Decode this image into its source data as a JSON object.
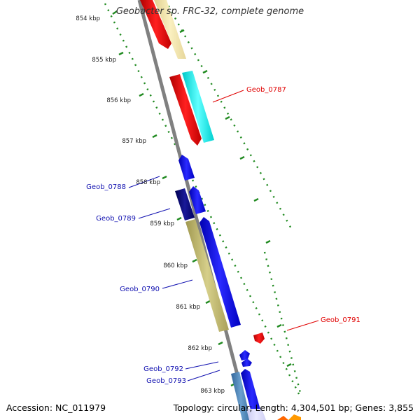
{
  "title": "Geobacter sp. FRC-32, complete genome",
  "footer": {
    "accession": "Accession: NC_011979",
    "summary": "Topology: circular; Length: 4,304,501 bp; Genes: 3,855"
  },
  "ticks": [
    "854 kbp",
    "855 kbp",
    "856 kbp",
    "857 kbp",
    "858 kbp",
    "859 kbp",
    "860 kbp",
    "861 kbp",
    "862 kbp",
    "863 kbp"
  ],
  "gene_labels": [
    {
      "text": "Geob_0787",
      "color": "#e00000"
    },
    {
      "text": "Geob_0788",
      "color": "#1010b0"
    },
    {
      "text": "Geob_0789",
      "color": "#1010b0"
    },
    {
      "text": "Geob_0790",
      "color": "#1010b0"
    },
    {
      "text": "Geob_0791",
      "color": "#e00000"
    },
    {
      "text": "Geob_0792",
      "color": "#1010b0"
    },
    {
      "text": "Geob_0793",
      "color": "#1010b0"
    }
  ],
  "colors": {
    "backbone": "#808080",
    "tick": "#228b22",
    "red": "#ff0000",
    "pale_yellow": "#f5e6a0",
    "cyan": "#00eeee",
    "blue": "#0000ee",
    "navy": "#000080",
    "khaki": "#bdb76b",
    "steel": "#4682b4",
    "orange": "#ff8800"
  }
}
